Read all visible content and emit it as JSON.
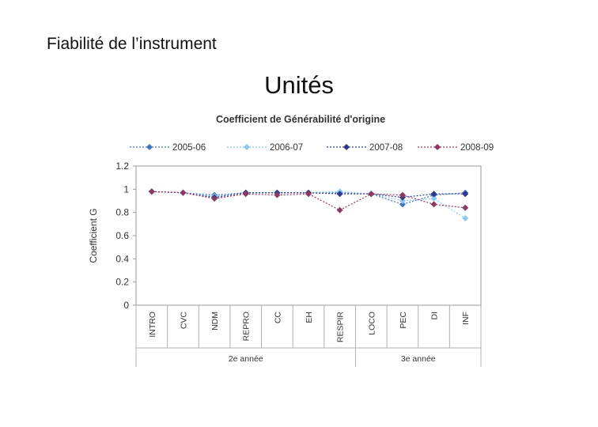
{
  "slide": {
    "heading": "Fiabilité de l’instrument",
    "title": "Unités"
  },
  "chart_data": {
    "type": "line",
    "title": "Coefficient de Générabilité d'origine",
    "ylabel": "Coefficient G",
    "xlabel": "",
    "ylim": [
      0,
      1.2
    ],
    "yticks": [
      "0",
      "0.2",
      "0.4",
      "0.6",
      "0.8",
      "1",
      "1.2"
    ],
    "categories": [
      "INTRO",
      "CVC",
      "NDM",
      "REPRO",
      "CC",
      "EH",
      "RESPIR",
      "LOCO",
      "PEC",
      "DI",
      "INF"
    ],
    "groups": [
      {
        "label": "2e année",
        "from": 0,
        "to": 6
      },
      {
        "label": "3e année",
        "from": 7,
        "to": 10
      }
    ],
    "legend_position": "top",
    "grid": false,
    "series": [
      {
        "name": "2005-06",
        "color": "#4472C4",
        "values": [
          0.98,
          0.97,
          0.95,
          0.97,
          0.97,
          0.97,
          0.97,
          0.96,
          0.87,
          0.95,
          0.97
        ]
      },
      {
        "name": "2006-07",
        "color": "#8CC8F0",
        "values": [
          0.98,
          0.97,
          0.94,
          0.97,
          0.97,
          0.97,
          0.98,
          0.96,
          0.9,
          0.92,
          0.75
        ]
      },
      {
        "name": "2007-08",
        "color": "#2E3A87",
        "values": [
          0.98,
          0.97,
          0.93,
          0.97,
          0.97,
          0.97,
          0.96,
          0.96,
          0.93,
          0.96,
          0.96
        ]
      },
      {
        "name": "2008-09",
        "color": "#8B3A62",
        "values": [
          0.98,
          0.97,
          0.92,
          0.96,
          0.95,
          0.96,
          0.82,
          0.96,
          0.95,
          0.87,
          0.84
        ]
      }
    ]
  }
}
